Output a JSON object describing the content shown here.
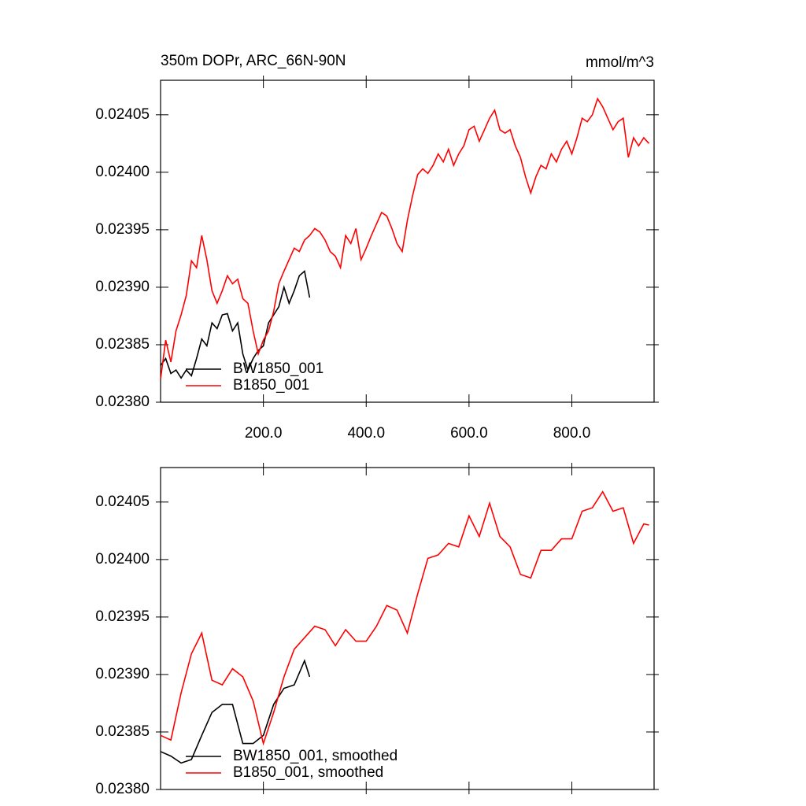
{
  "chart_data": [
    {
      "type": "line",
      "title": "350m DOPr, ARC_66N-90N",
      "units": "mmol/m^3",
      "xlim": [
        0,
        960
      ],
      "ylim": [
        0.0238,
        0.02408
      ],
      "xticks": [
        {
          "value": 200,
          "label": "200.0"
        },
        {
          "value": 400,
          "label": "400.0"
        },
        {
          "value": 600,
          "label": "600.0"
        },
        {
          "value": 800,
          "label": "800.0"
        }
      ],
      "yticks": [
        {
          "value": 0.0238,
          "label": "0.02380"
        },
        0.02385,
        {
          "value": 0.0239,
          "label": "0.02390"
        },
        0.02395,
        {
          "value": 0.024,
          "label": "0.02400"
        },
        0.02405
      ],
      "series": [
        {
          "name": "BW1850_001",
          "color": "#000000",
          "x": [
            0,
            10,
            20,
            30,
            40,
            50,
            60,
            70,
            80,
            90,
            100,
            110,
            120,
            130,
            140,
            150,
            160,
            170,
            180,
            190,
            200,
            210,
            220,
            230,
            240,
            250,
            260,
            270,
            280,
            290
          ],
          "values": [
            0.023832,
            0.023838,
            0.023825,
            0.023828,
            0.023821,
            0.023828,
            0.023823,
            0.023838,
            0.023855,
            0.023849,
            0.023869,
            0.023864,
            0.023876,
            0.023877,
            0.023862,
            0.023869,
            0.023842,
            0.023828,
            0.023838,
            0.023845,
            0.023849,
            0.023869,
            0.023876,
            0.023883,
            0.0239,
            0.023886,
            0.023897,
            0.02391,
            0.023914,
            0.023891
          ]
        },
        {
          "name": "B1850_001",
          "color": "#ff0000",
          "x": [
            0,
            10,
            20,
            30,
            40,
            50,
            60,
            70,
            80,
            90,
            100,
            110,
            120,
            130,
            140,
            150,
            160,
            170,
            180,
            190,
            200,
            210,
            220,
            230,
            240,
            250,
            260,
            270,
            280,
            290,
            300,
            310,
            320,
            330,
            340,
            350,
            360,
            370,
            380,
            390,
            400,
            410,
            420,
            430,
            440,
            450,
            460,
            470,
            480,
            490,
            500,
            510,
            520,
            530,
            540,
            550,
            560,
            570,
            580,
            590,
            600,
            610,
            620,
            630,
            640,
            650,
            660,
            670,
            680,
            690,
            700,
            710,
            720,
            730,
            740,
            750,
            760,
            770,
            780,
            790,
            800,
            810,
            820,
            830,
            840,
            850,
            860,
            870,
            880,
            890,
            900,
            910,
            920,
            930,
            940,
            950
          ],
          "values": [
            0.02382,
            0.023854,
            0.023835,
            0.023862,
            0.023876,
            0.023893,
            0.023923,
            0.023917,
            0.023945,
            0.023924,
            0.023897,
            0.023886,
            0.023897,
            0.02391,
            0.023903,
            0.023907,
            0.02389,
            0.023886,
            0.023862,
            0.023842,
            0.023854,
            0.023862,
            0.023879,
            0.023903,
            0.023914,
            0.023924,
            0.023934,
            0.023931,
            0.023941,
            0.023945,
            0.023951,
            0.023948,
            0.023941,
            0.023931,
            0.023927,
            0.023917,
            0.023945,
            0.023938,
            0.023951,
            0.023924,
            0.023934,
            0.023945,
            0.023955,
            0.023965,
            0.023962,
            0.023951,
            0.023938,
            0.023931,
            0.023958,
            0.023979,
            0.023998,
            0.024003,
            0.023999,
            0.024006,
            0.024016,
            0.024009,
            0.02402,
            0.024006,
            0.024016,
            0.024023,
            0.024037,
            0.02404,
            0.024027,
            0.024037,
            0.024047,
            0.024054,
            0.024037,
            0.024034,
            0.024037,
            0.024023,
            0.024013,
            0.023996,
            0.023982,
            0.023996,
            0.024006,
            0.024003,
            0.024016,
            0.024009,
            0.02402,
            0.024027,
            0.024016,
            0.02403,
            0.024047,
            0.024044,
            0.02405,
            0.024064,
            0.024057,
            0.024047,
            0.024037,
            0.024044,
            0.024047,
            0.024013,
            0.02403,
            0.024023,
            0.02403,
            0.024025
          ]
        }
      ]
    },
    {
      "type": "line",
      "xlim": [
        0,
        960
      ],
      "ylim": [
        0.0238,
        0.02408
      ],
      "xticks": [
        200,
        400,
        600,
        800
      ],
      "yticks": [
        {
          "value": 0.0238,
          "label": "0.02380"
        },
        0.02385,
        {
          "value": 0.0239,
          "label": "0.02390"
        },
        0.02395,
        {
          "value": 0.024,
          "label": "0.02400"
        },
        0.02405
      ],
      "series": [
        {
          "name": "BW1850_001, smoothed",
          "color": "#000000",
          "x": [
            0,
            20,
            40,
            60,
            80,
            100,
            120,
            140,
            160,
            180,
            200,
            220,
            240,
            260,
            280,
            290
          ],
          "values": [
            0.023833,
            0.023829,
            0.023823,
            0.023826,
            0.023847,
            0.023867,
            0.023874,
            0.023874,
            0.02384,
            0.02384,
            0.023847,
            0.023874,
            0.023888,
            0.023891,
            0.023912,
            0.023898
          ]
        },
        {
          "name": "B1850_001, smoothed",
          "color": "#ff0000",
          "x": [
            0,
            20,
            40,
            60,
            80,
            100,
            120,
            140,
            160,
            180,
            200,
            220,
            240,
            260,
            280,
            300,
            320,
            340,
            360,
            380,
            400,
            420,
            440,
            460,
            480,
            500,
            520,
            540,
            560,
            580,
            600,
            620,
            640,
            660,
            680,
            700,
            720,
            740,
            760,
            780,
            800,
            820,
            840,
            860,
            880,
            900,
            920,
            940,
            950
          ],
          "values": [
            0.023847,
            0.023843,
            0.023884,
            0.023918,
            0.023936,
            0.023895,
            0.023891,
            0.023905,
            0.023898,
            0.023877,
            0.02384,
            0.023867,
            0.023898,
            0.023922,
            0.023932,
            0.023942,
            0.023939,
            0.023925,
            0.023939,
            0.023929,
            0.023929,
            0.023942,
            0.02396,
            0.023956,
            0.023936,
            0.02397,
            0.024001,
            0.024004,
            0.024014,
            0.024011,
            0.024038,
            0.02402,
            0.024049,
            0.02402,
            0.024011,
            0.023987,
            0.023984,
            0.024008,
            0.024008,
            0.024018,
            0.024018,
            0.024042,
            0.024045,
            0.024059,
            0.024042,
            0.024045,
            0.024014,
            0.024031,
            0.02403
          ]
        }
      ]
    }
  ]
}
